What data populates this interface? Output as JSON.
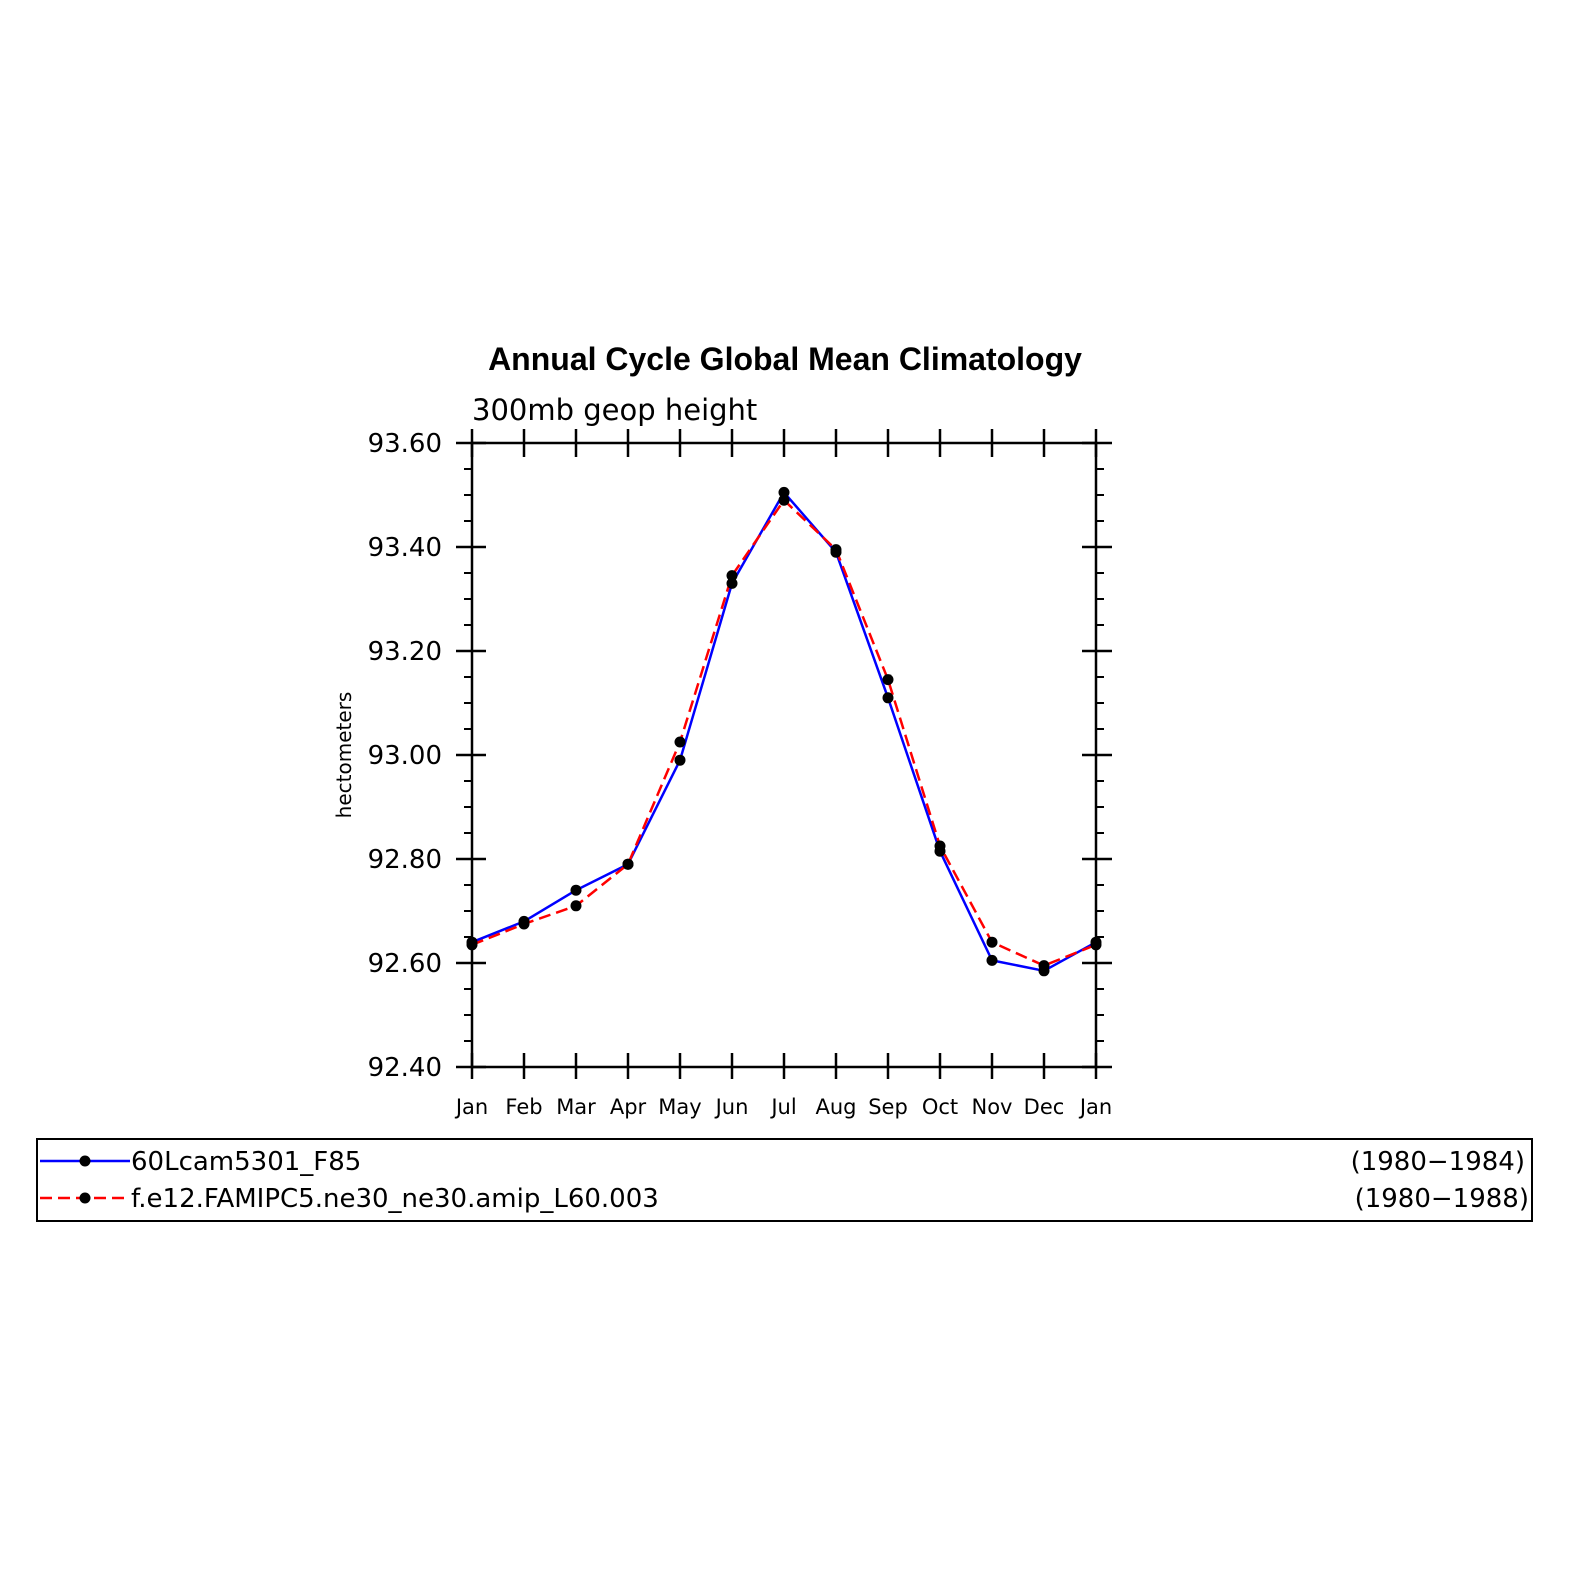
{
  "chart_data": {
    "type": "line",
    "title": "Annual Cycle Global Mean Climatology",
    "subtitle": "300mb geop height",
    "xlabel": "",
    "ylabel": "hectometers",
    "categories": [
      "Jan",
      "Feb",
      "Mar",
      "Apr",
      "May",
      "Jun",
      "Jul",
      "Aug",
      "Sep",
      "Oct",
      "Nov",
      "Dec",
      "Jan"
    ],
    "ylim": [
      92.4,
      93.6
    ],
    "yticks": [
      92.4,
      92.6,
      92.8,
      93.0,
      93.2,
      93.4,
      93.6
    ],
    "ytick_labels": [
      "92.40",
      "92.60",
      "92.80",
      "93.00",
      "93.20",
      "93.40",
      "93.60"
    ],
    "y_minor_step": 0.05,
    "grid": false,
    "legend_position": "bottom",
    "series": [
      {
        "name": "60Lcam5301_F85",
        "period": "(1980−1984)",
        "color": "#0000ff",
        "dash": "solid",
        "values": [
          92.64,
          92.68,
          92.74,
          92.79,
          92.99,
          93.33,
          93.505,
          93.39,
          93.11,
          92.815,
          92.605,
          92.585,
          92.64
        ]
      },
      {
        "name": "f.e12.FAMIPC5.ne30_ne30.amip_L60.003",
        "period": "(1980−1988)",
        "color": "#ff0000",
        "dash": "dashed",
        "values": [
          92.635,
          92.675,
          92.71,
          92.79,
          93.025,
          93.345,
          93.49,
          93.395,
          93.145,
          92.825,
          92.64,
          92.595,
          92.635
        ]
      }
    ]
  }
}
